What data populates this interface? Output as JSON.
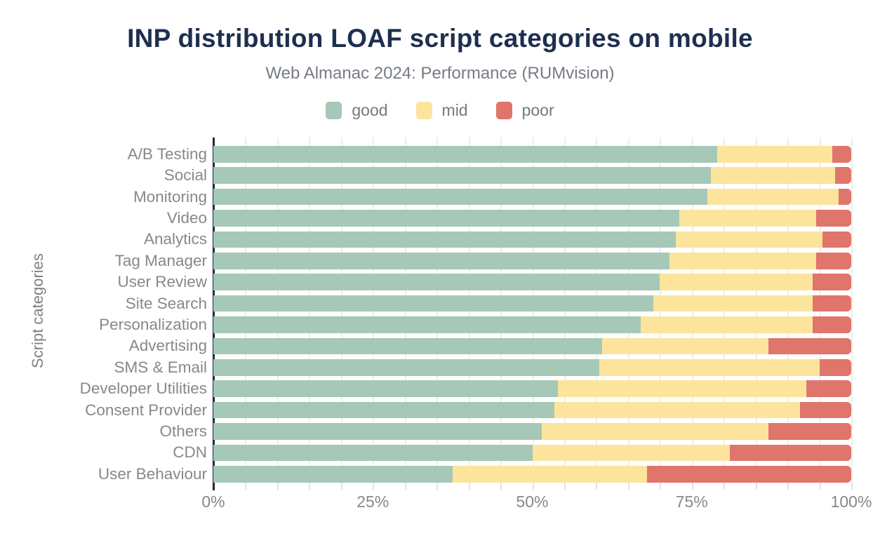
{
  "title": "INP distribution LOAF script categories on mobile",
  "subtitle": "Web Almanac 2024: Performance (RUMvision)",
  "legend": [
    {
      "label": "good",
      "color": "#a6c8b6"
    },
    {
      "label": "mid",
      "color": "#fce49d"
    },
    {
      "label": "poor",
      "color": "#e0756b"
    }
  ],
  "axes": {
    "y_label": "Script categories",
    "x_ticks": [
      "0%",
      "25%",
      "50%",
      "75%",
      "100%"
    ],
    "x_range": [
      0,
      100
    ],
    "grid_step_pct": 5,
    "grid": "on"
  },
  "colors": {
    "title": "#1e2f4f",
    "axis_line": "#1c2b47",
    "gridline": "#ededed",
    "label_text": "#85888d"
  },
  "chart_data": {
    "type": "bar",
    "orientation": "horizontal",
    "stacked": true,
    "title": "INP distribution LOAF script categories on mobile",
    "subtitle": "Web Almanac 2024: Performance (RUMvision)",
    "xlabel": "",
    "ylabel": "Script categories",
    "xlim": [
      0,
      100
    ],
    "unit": "percent",
    "legend_position": "top",
    "categories": [
      "A/B Testing",
      "Social",
      "Monitoring",
      "Video",
      "Analytics",
      "Tag Manager",
      "User Review",
      "Site Search",
      "Personalization",
      "Advertising",
      "SMS & Email",
      "Developer Utilities",
      "Consent Provider",
      "Others",
      "CDN",
      "User Behaviour"
    ],
    "series": [
      {
        "name": "good",
        "color": "#a6c8b6",
        "values": [
          79,
          78,
          77.5,
          73,
          72.5,
          71.5,
          70,
          69,
          67,
          61,
          60.5,
          54,
          53.5,
          51.5,
          50,
          37.5
        ]
      },
      {
        "name": "mid",
        "color": "#fce49d",
        "values": [
          18,
          19.5,
          20.5,
          21.5,
          23,
          23,
          24,
          25,
          27,
          26,
          34.5,
          39,
          38.5,
          35.5,
          31,
          30.5
        ]
      },
      {
        "name": "poor",
        "color": "#e0756b",
        "values": [
          3,
          2.5,
          2,
          5.5,
          4.5,
          5.5,
          6,
          6,
          6,
          13,
          5,
          7,
          8,
          13,
          19,
          32
        ]
      }
    ]
  }
}
